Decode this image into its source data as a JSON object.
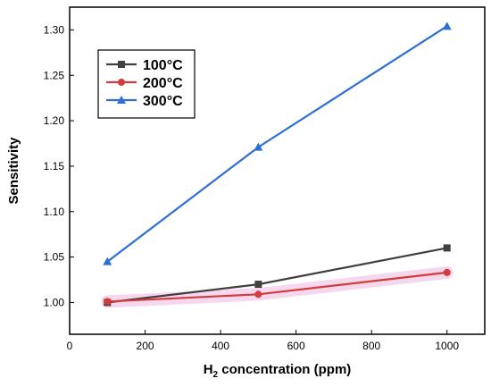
{
  "chart_data": {
    "type": "line",
    "xlabel_main": "H",
    "xlabel_sub": "2",
    "xlabel_rest": " concentration (ppm)",
    "ylabel": "Sensitivity",
    "xlim": [
      0,
      1100
    ],
    "ylim": [
      0.965,
      1.325
    ],
    "xticks": [
      0,
      200,
      400,
      600,
      800,
      1000
    ],
    "yticks": [
      1.0,
      1.05,
      1.1,
      1.15,
      1.2,
      1.25,
      1.3
    ],
    "legend_position": "top-left",
    "grid": false,
    "series": [
      {
        "name": "100°C",
        "color": "#404040",
        "marker": "square",
        "x": [
          100,
          500,
          1000
        ],
        "y": [
          1.0,
          1.02,
          1.06
        ]
      },
      {
        "name": "200°C",
        "color": "#d23c3c",
        "marker": "circle",
        "x": [
          100,
          500,
          1000
        ],
        "y": [
          1.001,
          1.009,
          1.033
        ]
      },
      {
        "name": "300°C",
        "color": "#2e6fd6",
        "marker": "triangle",
        "x": [
          100,
          500,
          1000
        ],
        "y": [
          1.045,
          1.171,
          1.304
        ]
      }
    ]
  }
}
